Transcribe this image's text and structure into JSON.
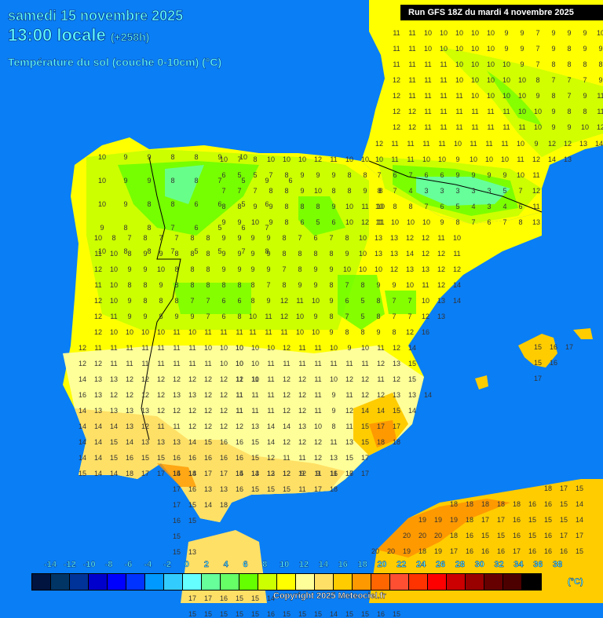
{
  "header": {
    "date": "samedi 15 novembre 2025",
    "time": "13:00 locale",
    "offset": "(+258h)",
    "parameter": "Température du sol (couche 0-10cm) (°C)"
  },
  "run_label": "Run GFS 18Z du mardi 4 novembre 2025",
  "legend": {
    "unit": "(°C)",
    "ticks": [
      "-14",
      "-12",
      "-10",
      "-8",
      "-6",
      "-4",
      "-2",
      "0",
      "2",
      "4",
      "6",
      "8",
      "10",
      "12",
      "14",
      "16",
      "18",
      "20",
      "22",
      "24",
      "26",
      "28",
      "30",
      "32",
      "34",
      "36",
      "38"
    ],
    "colors": [
      "#00143f",
      "#003566",
      "#003399",
      "#0000cc",
      "#0000ff",
      "#0033ff",
      "#0099ff",
      "#33ccff",
      "#66ffff",
      "#66ff99",
      "#66ff66",
      "#66ff00",
      "#ccff00",
      "#ffff00",
      "#ffff99",
      "#ffe066",
      "#ffcc00",
      "#ff9900",
      "#ff6600",
      "#ff4f33",
      "#ff3300",
      "#ff0000",
      "#cc0000",
      "#990000",
      "#660000",
      "#4d0000",
      "#000000"
    ]
  },
  "copyright": "Copyright 2025 Meteociel.fr",
  "map": {
    "sea_color": "#0a7ef5",
    "regions": [
      {
        "name": "Galicia",
        "values": [
          [
            10,
            9,
            9,
            8,
            8,
            9,
            10
          ],
          [
            10,
            9,
            9,
            8,
            8,
            7,
            5,
            9,
            6
          ],
          [
            10,
            9,
            8,
            8,
            6,
            6,
            5,
            6
          ],
          [
            9,
            8,
            8,
            7,
            6,
            5,
            6,
            7
          ],
          [
            10,
            8,
            8,
            7,
            5,
            5,
            7,
            8
          ]
        ]
      },
      {
        "name": "Cantabria-Basque",
        "values": [
          [
            10,
            7,
            8,
            10,
            10,
            10,
            12,
            11,
            10,
            10
          ],
          [
            6,
            5,
            5,
            7,
            8,
            9,
            9,
            9,
            8,
            8
          ],
          [
            7,
            7,
            7,
            8,
            8,
            9,
            10,
            8,
            8,
            9,
            8
          ],
          [
            8,
            8,
            9,
            9,
            8,
            8,
            8,
            9,
            10,
            11,
            10
          ],
          [
            9,
            9,
            10,
            9,
            8,
            6,
            5,
            6,
            10,
            12,
            11
          ]
        ]
      },
      {
        "name": "Pyrenees",
        "values": [
          [
            12,
            11,
            11,
            11,
            11,
            10,
            11,
            11,
            11,
            10,
            9,
            12,
            12,
            13,
            14
          ],
          [
            10,
            11,
            11,
            10,
            10,
            9,
            10,
            10,
            10,
            11,
            12,
            14,
            13
          ],
          [
            7,
            6,
            7,
            6,
            6,
            9,
            9,
            9,
            9,
            10,
            11
          ],
          [
            8,
            7,
            4,
            3,
            3,
            3,
            3,
            3,
            5,
            7,
            12
          ],
          [
            10,
            8,
            8,
            7,
            6,
            5,
            4,
            3,
            4,
            6,
            11
          ],
          [
            11,
            10,
            10,
            10,
            9,
            8,
            7,
            6,
            7,
            8,
            13
          ]
        ]
      },
      {
        "name": "Aquitaine",
        "values": [
          [
            11,
            11,
            10,
            10,
            10,
            10,
            10,
            9,
            9,
            7,
            9,
            9,
            9,
            10
          ],
          [
            11,
            11,
            10,
            10,
            10,
            10,
            10,
            9,
            9,
            7,
            9,
            8,
            9,
            9
          ],
          [
            11,
            11,
            11,
            11,
            10,
            10,
            10,
            10,
            9,
            7,
            8,
            8,
            8,
            8
          ],
          [
            12,
            11,
            11,
            11,
            10,
            10,
            10,
            10,
            10,
            8,
            7,
            7,
            7,
            9
          ],
          [
            12,
            11,
            11,
            11,
            11,
            10,
            10,
            10,
            10,
            9,
            8,
            7,
            9,
            11
          ],
          [
            12,
            12,
            11,
            11,
            11,
            11,
            11,
            11,
            10,
            10,
            9,
            8,
            8,
            11,
            12
          ],
          [
            12,
            12,
            11,
            11,
            11,
            11,
            11,
            11,
            11,
            10,
            9,
            9,
            10,
            12,
            13
          ]
        ]
      },
      {
        "name": "Portugal-North/Castilla",
        "values": [
          [
            10,
            8,
            7,
            8,
            7,
            7,
            8,
            8,
            9,
            9
          ],
          [
            11,
            10,
            8,
            9,
            9,
            8,
            8,
            8,
            9,
            9
          ],
          [
            12,
            10,
            9,
            9,
            10,
            8,
            8,
            8,
            9,
            9
          ],
          [
            11,
            10,
            8,
            8,
            9,
            8,
            8,
            8,
            8,
            8
          ],
          [
            12,
            10,
            9,
            8,
            8,
            8,
            7,
            7,
            6,
            6
          ],
          [
            12,
            11,
            9,
            9,
            8,
            9,
            9,
            7,
            6,
            8
          ],
          [
            12,
            10,
            10,
            10,
            10,
            11,
            10,
            11,
            11,
            11
          ]
        ]
      },
      {
        "name": "Central-East",
        "values": [
          [
            9,
            9,
            8,
            7,
            6,
            7,
            8,
            10,
            13,
            13,
            12,
            12,
            11,
            10
          ],
          [
            9,
            9,
            8,
            8,
            8,
            8,
            9,
            10,
            13,
            13,
            14,
            12,
            12,
            11
          ],
          [
            9,
            9,
            7,
            8,
            9,
            9,
            10,
            10,
            10,
            12,
            13,
            13,
            12,
            12
          ],
          [
            8,
            7,
            8,
            9,
            9,
            8,
            7,
            8,
            9,
            9,
            10,
            11,
            12,
            14
          ],
          [
            8,
            9,
            12,
            11,
            10,
            9,
            6,
            5,
            8,
            7,
            7,
            10,
            13,
            14
          ],
          [
            10,
            11,
            12,
            10,
            9,
            8,
            7,
            5,
            8,
            7,
            7,
            12,
            13
          ],
          [
            11,
            11,
            11,
            10,
            10,
            9,
            8,
            8,
            9,
            8,
            12,
            16
          ]
        ]
      },
      {
        "name": "Southwest",
        "values": [
          [
            12,
            11,
            11,
            11,
            11,
            11,
            11,
            11,
            10,
            10,
            10
          ],
          [
            12,
            12,
            11,
            11,
            11,
            11,
            11,
            11,
            11,
            10,
            10
          ],
          [
            14,
            13,
            13,
            12,
            12,
            12,
            12,
            12,
            12,
            12,
            12,
            11
          ],
          [
            16,
            13,
            12,
            12,
            12,
            12,
            13,
            13,
            12,
            12,
            11
          ],
          [
            14,
            13,
            13,
            13,
            13,
            12,
            12,
            12,
            12,
            12,
            11
          ],
          [
            14,
            14,
            14,
            13,
            12,
            11,
            11,
            12,
            12,
            12
          ],
          [
            14,
            14,
            15,
            14,
            13,
            13,
            13,
            14,
            15,
            16
          ],
          [
            14,
            14,
            15,
            16,
            15,
            15,
            16,
            16,
            16,
            16
          ],
          [
            15,
            14,
            14,
            18,
            17,
            17,
            15,
            14
          ]
        ]
      },
      {
        "name": "Southeast",
        "values": [
          [
            10,
            10,
            10,
            12,
            11,
            11,
            10,
            9,
            10,
            11,
            12,
            14
          ],
          [
            10,
            10,
            11,
            11,
            11,
            11,
            11,
            11,
            11,
            12,
            13,
            15
          ],
          [
            11,
            10,
            11,
            12,
            12,
            11,
            10,
            12,
            12,
            11,
            12,
            15
          ],
          [
            11,
            11,
            11,
            12,
            12,
            11,
            9,
            11,
            12,
            12,
            13,
            13,
            14
          ],
          [
            11,
            11,
            11,
            12,
            12,
            11,
            9,
            12,
            14,
            14,
            15,
            14
          ],
          [
            12,
            13,
            14,
            14,
            13,
            10,
            8,
            11,
            15,
            17,
            17
          ],
          [
            16,
            15,
            14,
            12,
            12,
            12,
            11,
            13,
            15,
            18,
            18
          ],
          [
            16,
            15,
            12,
            11,
            11,
            12,
            13,
            15,
            17
          ],
          [
            14,
            13,
            12,
            12,
            9,
            11,
            16,
            17
          ]
        ]
      },
      {
        "name": "Andalusia-coast",
        "values": [
          [
            14,
            18,
            17,
            17,
            15,
            14,
            13,
            12,
            12,
            9,
            11,
            16,
            17
          ],
          [
            17,
            16,
            13,
            13,
            16,
            15,
            15,
            15,
            11,
            17,
            18
          ],
          [
            17,
            15,
            14,
            18
          ],
          [
            16,
            15
          ],
          [
            15
          ],
          [
            15,
            13
          ]
        ]
      },
      {
        "name": "Balearic",
        "values": [
          [
            15,
            16,
            17
          ],
          [
            15,
            16
          ],
          [
            17
          ]
        ]
      },
      {
        "name": "North-Africa",
        "values": [
          [
            18,
            17,
            15
          ],
          [
            18,
            18,
            18,
            18,
            18,
            16,
            16,
            15,
            14
          ],
          [
            19,
            19,
            19,
            18,
            17,
            17,
            16,
            15,
            15,
            15,
            14
          ],
          [
            20,
            20,
            20,
            18,
            16,
            15,
            15,
            16,
            15,
            16,
            17,
            17
          ],
          [
            20,
            20,
            19,
            18,
            19,
            17,
            16,
            16,
            16,
            17,
            16,
            16,
            16,
            15
          ]
        ]
      },
      {
        "name": "Bottom-row",
        "values": [
          [
            17,
            17,
            16,
            15,
            15,
            14
          ],
          [
            15,
            15,
            15,
            15,
            15,
            16,
            15,
            15,
            15,
            14,
            15,
            15,
            16,
            15
          ]
        ]
      }
    ]
  }
}
